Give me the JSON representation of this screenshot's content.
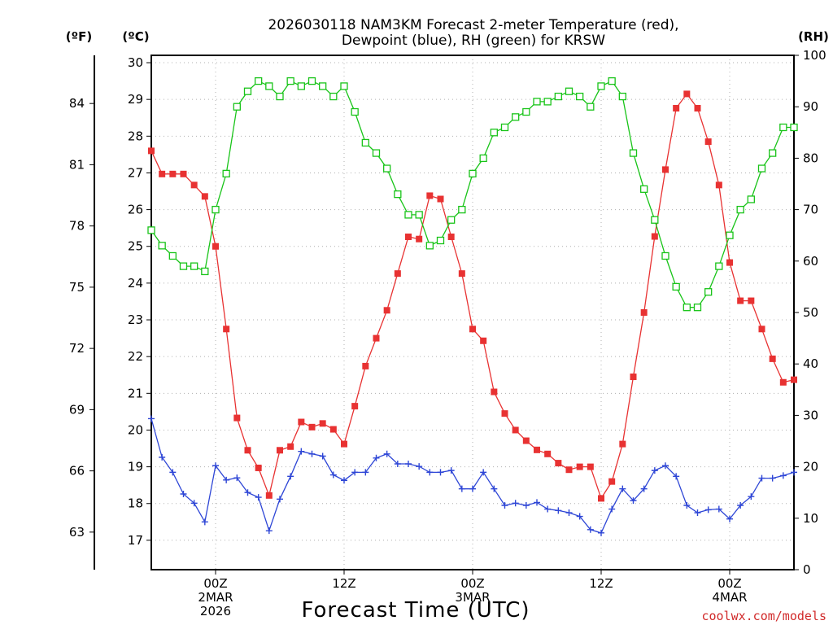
{
  "chart_data": {
    "type": "line",
    "title_line1": "2026030118 NAM3KM Forecast 2-meter Temperature (red),",
    "title_line2": "Dewpoint (blue), RH (green) for KRSW",
    "xlabel": "Forecast Time (UTC)",
    "left_unit_f": "(ºF)",
    "left_unit_c": "(ºC)",
    "right_unit": "(RH)",
    "credit": "coolwx.com/models",
    "x_range_hours": [
      0,
      60
    ],
    "celsius_range": [
      16.2,
      30.2
    ],
    "rh_range": [
      0,
      100
    ],
    "celsius_ticks": [
      "17",
      "18",
      "19",
      "20",
      "21",
      "22",
      "23",
      "24",
      "25",
      "26",
      "27",
      "28",
      "29",
      "30"
    ],
    "fahrenheit_ticks": [
      "63",
      "66",
      "69",
      "72",
      "75",
      "78",
      "81",
      "84"
    ],
    "rh_ticks": [
      "0",
      "10",
      "20",
      "30",
      "40",
      "50",
      "60",
      "70",
      "80",
      "90",
      "100"
    ],
    "x_ticks": [
      {
        "hour": 6,
        "line1": "00Z",
        "line2": "2MAR",
        "line3": "2026"
      },
      {
        "hour": 18,
        "line1": "12Z",
        "line2": "",
        "line3": ""
      },
      {
        "hour": 30,
        "line1": "00Z",
        "line2": "3MAR",
        "line3": ""
      },
      {
        "hour": 42,
        "line1": "12Z",
        "line2": "",
        "line3": ""
      },
      {
        "hour": 54,
        "line1": "00Z",
        "line2": "4MAR",
        "line3": ""
      }
    ],
    "series": [
      {
        "name": "Temperature",
        "unit": "C",
        "color": "#e83232",
        "marker": "filled-square",
        "values": [
          27.6,
          26.97,
          26.97,
          26.97,
          26.67,
          26.36,
          25,
          22.75,
          20.33,
          19.45,
          18.97,
          18.22,
          19.45,
          19.55,
          20.22,
          20.08,
          20.18,
          20.02,
          19.62,
          20.65,
          21.74,
          22.5,
          23.26,
          24.26,
          25.26,
          25.2,
          26.38,
          26.29,
          25.26,
          24.26,
          22.75,
          22.43,
          21.04,
          20.45,
          20.0,
          19.71,
          19.46,
          19.35,
          19.1,
          18.92,
          19.0,
          19.0,
          18.14,
          18.6,
          19.62,
          21.45,
          23.2,
          25.27,
          27.09,
          28.76,
          29.15,
          28.76,
          27.85,
          26.67,
          24.56,
          23.52,
          23.52,
          22.75,
          21.94,
          21.3,
          21.37
        ]
      },
      {
        "name": "Dewpoint",
        "unit": "C",
        "color": "#2e46d6",
        "marker": "plus",
        "values": [
          20.31,
          19.26,
          18.85,
          18.26,
          18.01,
          17.5,
          19.03,
          18.64,
          18.7,
          18.3,
          18.17,
          17.26,
          18.12,
          18.74,
          19.42,
          19.35,
          19.29,
          18.78,
          18.63,
          18.85,
          18.85,
          19.24,
          19.35,
          19.08,
          19.08,
          19.01,
          18.85,
          18.85,
          18.9,
          18.4,
          18.4,
          18.85,
          18.4,
          17.95,
          18.01,
          17.95,
          18.03,
          17.85,
          17.81,
          17.75,
          17.65,
          17.29,
          17.2,
          17.85,
          18.4,
          18.08,
          18.4,
          18.9,
          19.03,
          18.74,
          17.95,
          17.75,
          17.83,
          17.85,
          17.58,
          17.95,
          18.19,
          18.69,
          18.69,
          18.76,
          18.85
        ]
      },
      {
        "name": "RH",
        "unit": "%",
        "color": "#18c418",
        "marker": "open-square",
        "values": [
          66,
          63,
          61,
          59,
          59,
          58,
          70,
          77,
          90,
          93,
          95,
          94,
          92,
          95,
          94,
          95,
          94,
          92,
          94,
          89,
          83,
          81,
          78,
          73,
          69,
          69,
          63,
          64,
          68,
          70,
          77,
          80,
          85,
          86,
          88,
          89,
          91,
          91,
          92,
          93,
          92,
          90,
          94,
          95,
          92,
          81,
          74,
          68,
          61,
          55,
          51,
          51,
          54,
          59,
          65,
          70,
          72,
          78,
          81,
          86,
          86
        ]
      }
    ]
  }
}
